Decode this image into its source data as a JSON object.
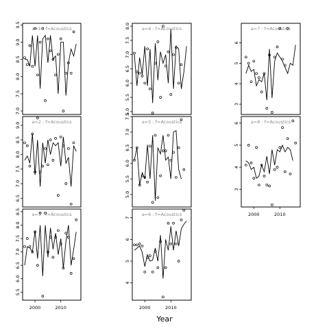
{
  "figure": {
    "xlabel": "Year"
  },
  "chart_data": [
    {
      "type": "line",
      "title": "a=1 : f=Acoustics",
      "ylim": [
        6.9,
        9.55
      ],
      "yticks": [
        7.0,
        7.5,
        8.0,
        8.5,
        9.0,
        9.5
      ],
      "series": [
        {
          "name": "fitted",
          "x": [
            1996,
            1997,
            1998,
            1999,
            2000,
            2001,
            2002,
            2003,
            2004,
            2005,
            2006,
            2007,
            2008,
            2009,
            2010,
            2011,
            2012,
            2013,
            2014,
            2015,
            2016
          ],
          "values": [
            8.5,
            8.5,
            8.3,
            9.2,
            8.3,
            9.2,
            7.65,
            9.1,
            9.2,
            8.4,
            9.2,
            8.5,
            8.6,
            7.5,
            9.0,
            9.0,
            7.45,
            8.4,
            8.8,
            8.6,
            8.95
          ]
        },
        {
          "name": "observed",
          "x": [
            1996,
            1997,
            1998,
            1999,
            2000,
            2001,
            2002,
            2003,
            2004,
            2005,
            2006,
            2007,
            2008,
            2009,
            2010,
            2011,
            2012,
            2013,
            2014,
            2015,
            2016
          ],
          "values": [
            8.55,
            8.35,
            8.9,
            8.3,
            9.4,
            8.05,
            9.0,
            9.4,
            7.3,
            9.1,
            8.75,
            8.5,
            8.05,
            8.65,
            9.1,
            7.0,
            8.1,
            8.4,
            8.1,
            9.3,
            null
          ]
        }
      ]
    },
    {
      "type": "line",
      "title": "a=4 : f=Acoustics",
      "ylim": [
        4.9,
        8.1
      ],
      "yticks": [
        5.0,
        5.5,
        6.0,
        6.5,
        7.0,
        7.5,
        8.0
      ],
      "series": [
        {
          "name": "fitted",
          "x": [
            1996,
            1997,
            1998,
            1999,
            2000,
            2001,
            2002,
            2003,
            2004,
            2005,
            2006,
            2007,
            2008,
            2009,
            2010,
            2011,
            2012,
            2013,
            2014,
            2015,
            2016
          ],
          "values": [
            7.0,
            5.9,
            6.9,
            6.3,
            7.3,
            5.9,
            7.2,
            5.3,
            7.4,
            6.1,
            7.1,
            6.7,
            7.0,
            6.0,
            7.9,
            5.8,
            7.3,
            7.2,
            5.8,
            6.4,
            7.3
          ]
        },
        {
          "name": "observed",
          "x": [
            1996,
            1997,
            1998,
            1999,
            2000,
            2001,
            2002,
            2003,
            2004,
            2005,
            2006,
            2007,
            2008,
            2009,
            2010,
            2011,
            2012,
            2013,
            2014,
            2015,
            2016
          ],
          "values": [
            7.05,
            6.4,
            6.35,
            6.25,
            6.0,
            7.2,
            5.8,
            4.95,
            6.7,
            7.45,
            5.5,
            8.0,
            6.6,
            7.1,
            5.6,
            7.0,
            7.25,
            6.0,
            6.65,
            null,
            null
          ]
        }
      ]
    },
    {
      "type": "line",
      "title": "a=7 : f=Acoustics",
      "ylim": [
        2.5,
        6.95
      ],
      "yticks": [
        3,
        4,
        5,
        6
      ],
      "series": [
        {
          "name": "fitted",
          "x": [
            1997,
            1998,
            1999,
            2000,
            2001,
            2002,
            2003,
            2004,
            2005,
            2006,
            2007,
            2008,
            2009,
            2010,
            2011,
            2012,
            2013,
            2014,
            2015,
            2016
          ],
          "values": [
            4.5,
            4.9,
            4.6,
            4.7,
            3.9,
            4.2,
            4.1,
            4.5,
            3.2,
            5.7,
            3.3,
            5.1,
            5.5,
            5.3,
            5.1,
            4.8,
            4.5,
            5.0,
            4.9,
            5.9
          ]
        },
        {
          "name": "observed",
          "x": [
            1997,
            1998,
            1999,
            2000,
            2001,
            2002,
            2003,
            2004,
            2005,
            2006,
            2007,
            2008,
            2009,
            2010,
            2011,
            2012,
            2013,
            2014,
            2015,
            2016
          ],
          "values": [
            5.3,
            5.0,
            4.1,
            5.1,
            4.5,
            4.3,
            3.6,
            4.5,
            2.8,
            5.4,
            2.6,
            5.3,
            5.8,
            6.7,
            5.2,
            4.9,
            6.7,
            null,
            null,
            null
          ]
        }
      ]
    },
    {
      "type": "line",
      "title": "a=2 : f=Acoustics",
      "ylim": [
        6.2,
        9.3
      ],
      "yticks": [
        6.5,
        7.0,
        7.5,
        8.0,
        8.5,
        9.0
      ],
      "series": [
        {
          "name": "fitted",
          "x": [
            1996,
            1997,
            1998,
            1999,
            2000,
            2001,
            2002,
            2003,
            2004,
            2005,
            2006,
            2007,
            2008,
            2009,
            2010,
            2011,
            2012,
            2013,
            2014,
            2015,
            2016
          ],
          "values": [
            7.8,
            7.95,
            7.7,
            8.7,
            7.3,
            8.5,
            6.9,
            8.4,
            7.7,
            8.5,
            8.0,
            8.4,
            8.3,
            8.4,
            7.6,
            8.6,
            7.7,
            7.9,
            6.9,
            8.3,
            8.1
          ]
        },
        {
          "name": "observed",
          "x": [
            1996,
            1997,
            1998,
            1999,
            2000,
            2001,
            2002,
            2003,
            2004,
            2005,
            2006,
            2007,
            2008,
            2009,
            2010,
            2011,
            2012,
            2013,
            2014,
            2015,
            2016
          ],
          "values": [
            8.4,
            8.3,
            7.6,
            8.7,
            7.4,
            9.25,
            7.4,
            7.6,
            8.2,
            7.65,
            8.5,
            7.8,
            8.55,
            6.6,
            8.6,
            8.3,
            7.0,
            8.2,
            6.3,
            8.4,
            null
          ]
        }
      ]
    },
    {
      "type": "line",
      "title": "a=5 : f=Acoustics",
      "ylim": [
        4.6,
        7.5
      ],
      "yticks": [
        5.0,
        5.5,
        6.0,
        6.5,
        7.0,
        7.5
      ],
      "series": [
        {
          "name": "fitted",
          "x": [
            1996,
            1997,
            1998,
            1999,
            2000,
            2001,
            2002,
            2003,
            2004,
            2005,
            2006,
            2007,
            2008,
            2009,
            2010,
            2011,
            2012,
            2013,
            2014,
            2015,
            2016
          ],
          "values": [
            6.1,
            6.5,
            5.3,
            5.7,
            5.5,
            6.6,
            5.5,
            6.9,
            4.8,
            6.5,
            6.3,
            6.9,
            6.1,
            6.2,
            5.5,
            7.0,
            7.05,
            5.8,
            5.5,
            null,
            null
          ]
        },
        {
          "name": "observed",
          "x": [
            1996,
            1997,
            1998,
            1999,
            2000,
            2001,
            2002,
            2003,
            2004,
            2005,
            2006,
            2007,
            2008,
            2009,
            2010,
            2011,
            2012,
            2013,
            2014,
            2015,
            2016
          ],
          "values": [
            6.1,
            6.5,
            5.3,
            5.6,
            5.55,
            5.4,
            6.55,
            4.75,
            6.9,
            4.9,
            5.6,
            6.4,
            6.4,
            6.9,
            6.1,
            6.35,
            5.55,
            6.5,
            7.4,
            5.8,
            null
          ]
        }
      ]
    },
    {
      "type": "line",
      "title": "a=8 : f=Acoustics",
      "ylim": [
        2.2,
        6.3
      ],
      "yticks": [
        3,
        4,
        5,
        6
      ],
      "series": [
        {
          "name": "fitted",
          "x": [
            1997,
            1998,
            1999,
            2000,
            2001,
            2002,
            2003,
            2004,
            2005,
            2006,
            2007,
            2008,
            2009,
            2010,
            2011,
            2012,
            2013,
            2014,
            2015,
            2016
          ],
          "values": [
            4.3,
            4.2,
            3.9,
            4.0,
            3.5,
            3.6,
            4.1,
            3.8,
            4.5,
            3.7,
            4.8,
            4.1,
            4.8,
            4.7,
            5.0,
            4.7,
            4.9,
            4.8,
            4.3,
            null
          ]
        },
        {
          "name": "observed",
          "x": [
            1997,
            1998,
            1999,
            2000,
            2001,
            2002,
            2003,
            2004,
            2005,
            2006,
            2007,
            2008,
            2009,
            2010,
            2011,
            2012,
            2013,
            2014,
            2015,
            2016
          ],
          "values": [
            4.1,
            5.0,
            4.2,
            3.5,
            4.9,
            3.2,
            4.1,
            3.6,
            3.2,
            3.15,
            2.3,
            3.9,
            4.0,
            4.9,
            5.8,
            3.8,
            5.3,
            3.7,
            6.1,
            5.1
          ]
        }
      ]
    },
    {
      "type": "line",
      "title": "a=3 : f=Acoustics",
      "ylim": [
        5.2,
        8.6
      ],
      "yticks": [
        5.5,
        6.0,
        6.5,
        7.0,
        7.5,
        8.0,
        8.5
      ],
      "series": [
        {
          "name": "fitted",
          "x": [
            1996,
            1997,
            1998,
            1999,
            2000,
            2001,
            2002,
            2003,
            2004,
            2005,
            2006,
            2007,
            2008,
            2009,
            2010,
            2011,
            2012,
            2013,
            2014,
            2015,
            2016
          ],
          "values": [
            6.5,
            7.2,
            7.15,
            7.0,
            7.8,
            6.75,
            8.0,
            6.1,
            8.0,
            6.8,
            7.9,
            7.1,
            7.7,
            6.9,
            7.5,
            6.4,
            7.4,
            8.0,
            6.5,
            7.1,
            7.75
          ]
        },
        {
          "name": "observed",
          "x": [
            1996,
            1997,
            1998,
            1999,
            2000,
            2001,
            2002,
            2003,
            2004,
            2005,
            2006,
            2007,
            2008,
            2009,
            2010,
            2011,
            2012,
            2013,
            2014,
            2015,
            2016
          ],
          "values": [
            7.2,
            7.5,
            7.2,
            7.0,
            7.75,
            6.5,
            8.45,
            5.35,
            8.45,
            7.0,
            7.55,
            6.8,
            7.55,
            7.8,
            7.3,
            6.4,
            7.7,
            7.55,
            6.2,
            6.75,
            8.2
          ]
        }
      ]
    },
    {
      "type": "line",
      "title": "a=6 : f=Acoustics",
      "ylim": [
        3.2,
        7.4
      ],
      "yticks": [
        4,
        5,
        6,
        7
      ],
      "series": [
        {
          "name": "fitted",
          "x": [
            1996,
            1997,
            1998,
            1999,
            2000,
            2001,
            2002,
            2003,
            2004,
            2005,
            2006,
            2007,
            2008,
            2009,
            2010,
            2011,
            2012,
            2013,
            2014,
            2015,
            2016
          ],
          "values": [
            5.5,
            5.6,
            5.7,
            5.4,
            4.75,
            5.3,
            5.0,
            5.05,
            5.6,
            5.0,
            6.2,
            4.2,
            6.0,
            5.5,
            6.6,
            5.5,
            6.4,
            5.7,
            6.5,
            6.7,
            6.85
          ]
        },
        {
          "name": "observed",
          "x": [
            1996,
            1997,
            1998,
            1999,
            2000,
            2001,
            2002,
            2003,
            2004,
            2005,
            2006,
            2007,
            2008,
            2009,
            2010,
            2011,
            2012,
            2013,
            2014,
            2015,
            2016
          ],
          "values": [
            5.75,
            5.75,
            5.8,
            5.7,
            4.5,
            5.15,
            5.25,
            4.5,
            5.45,
            4.7,
            5.9,
            3.35,
            4.7,
            6.75,
            5.8,
            6.75,
            5.8,
            5.0,
            6.9,
            7.35,
            null
          ]
        }
      ]
    }
  ]
}
